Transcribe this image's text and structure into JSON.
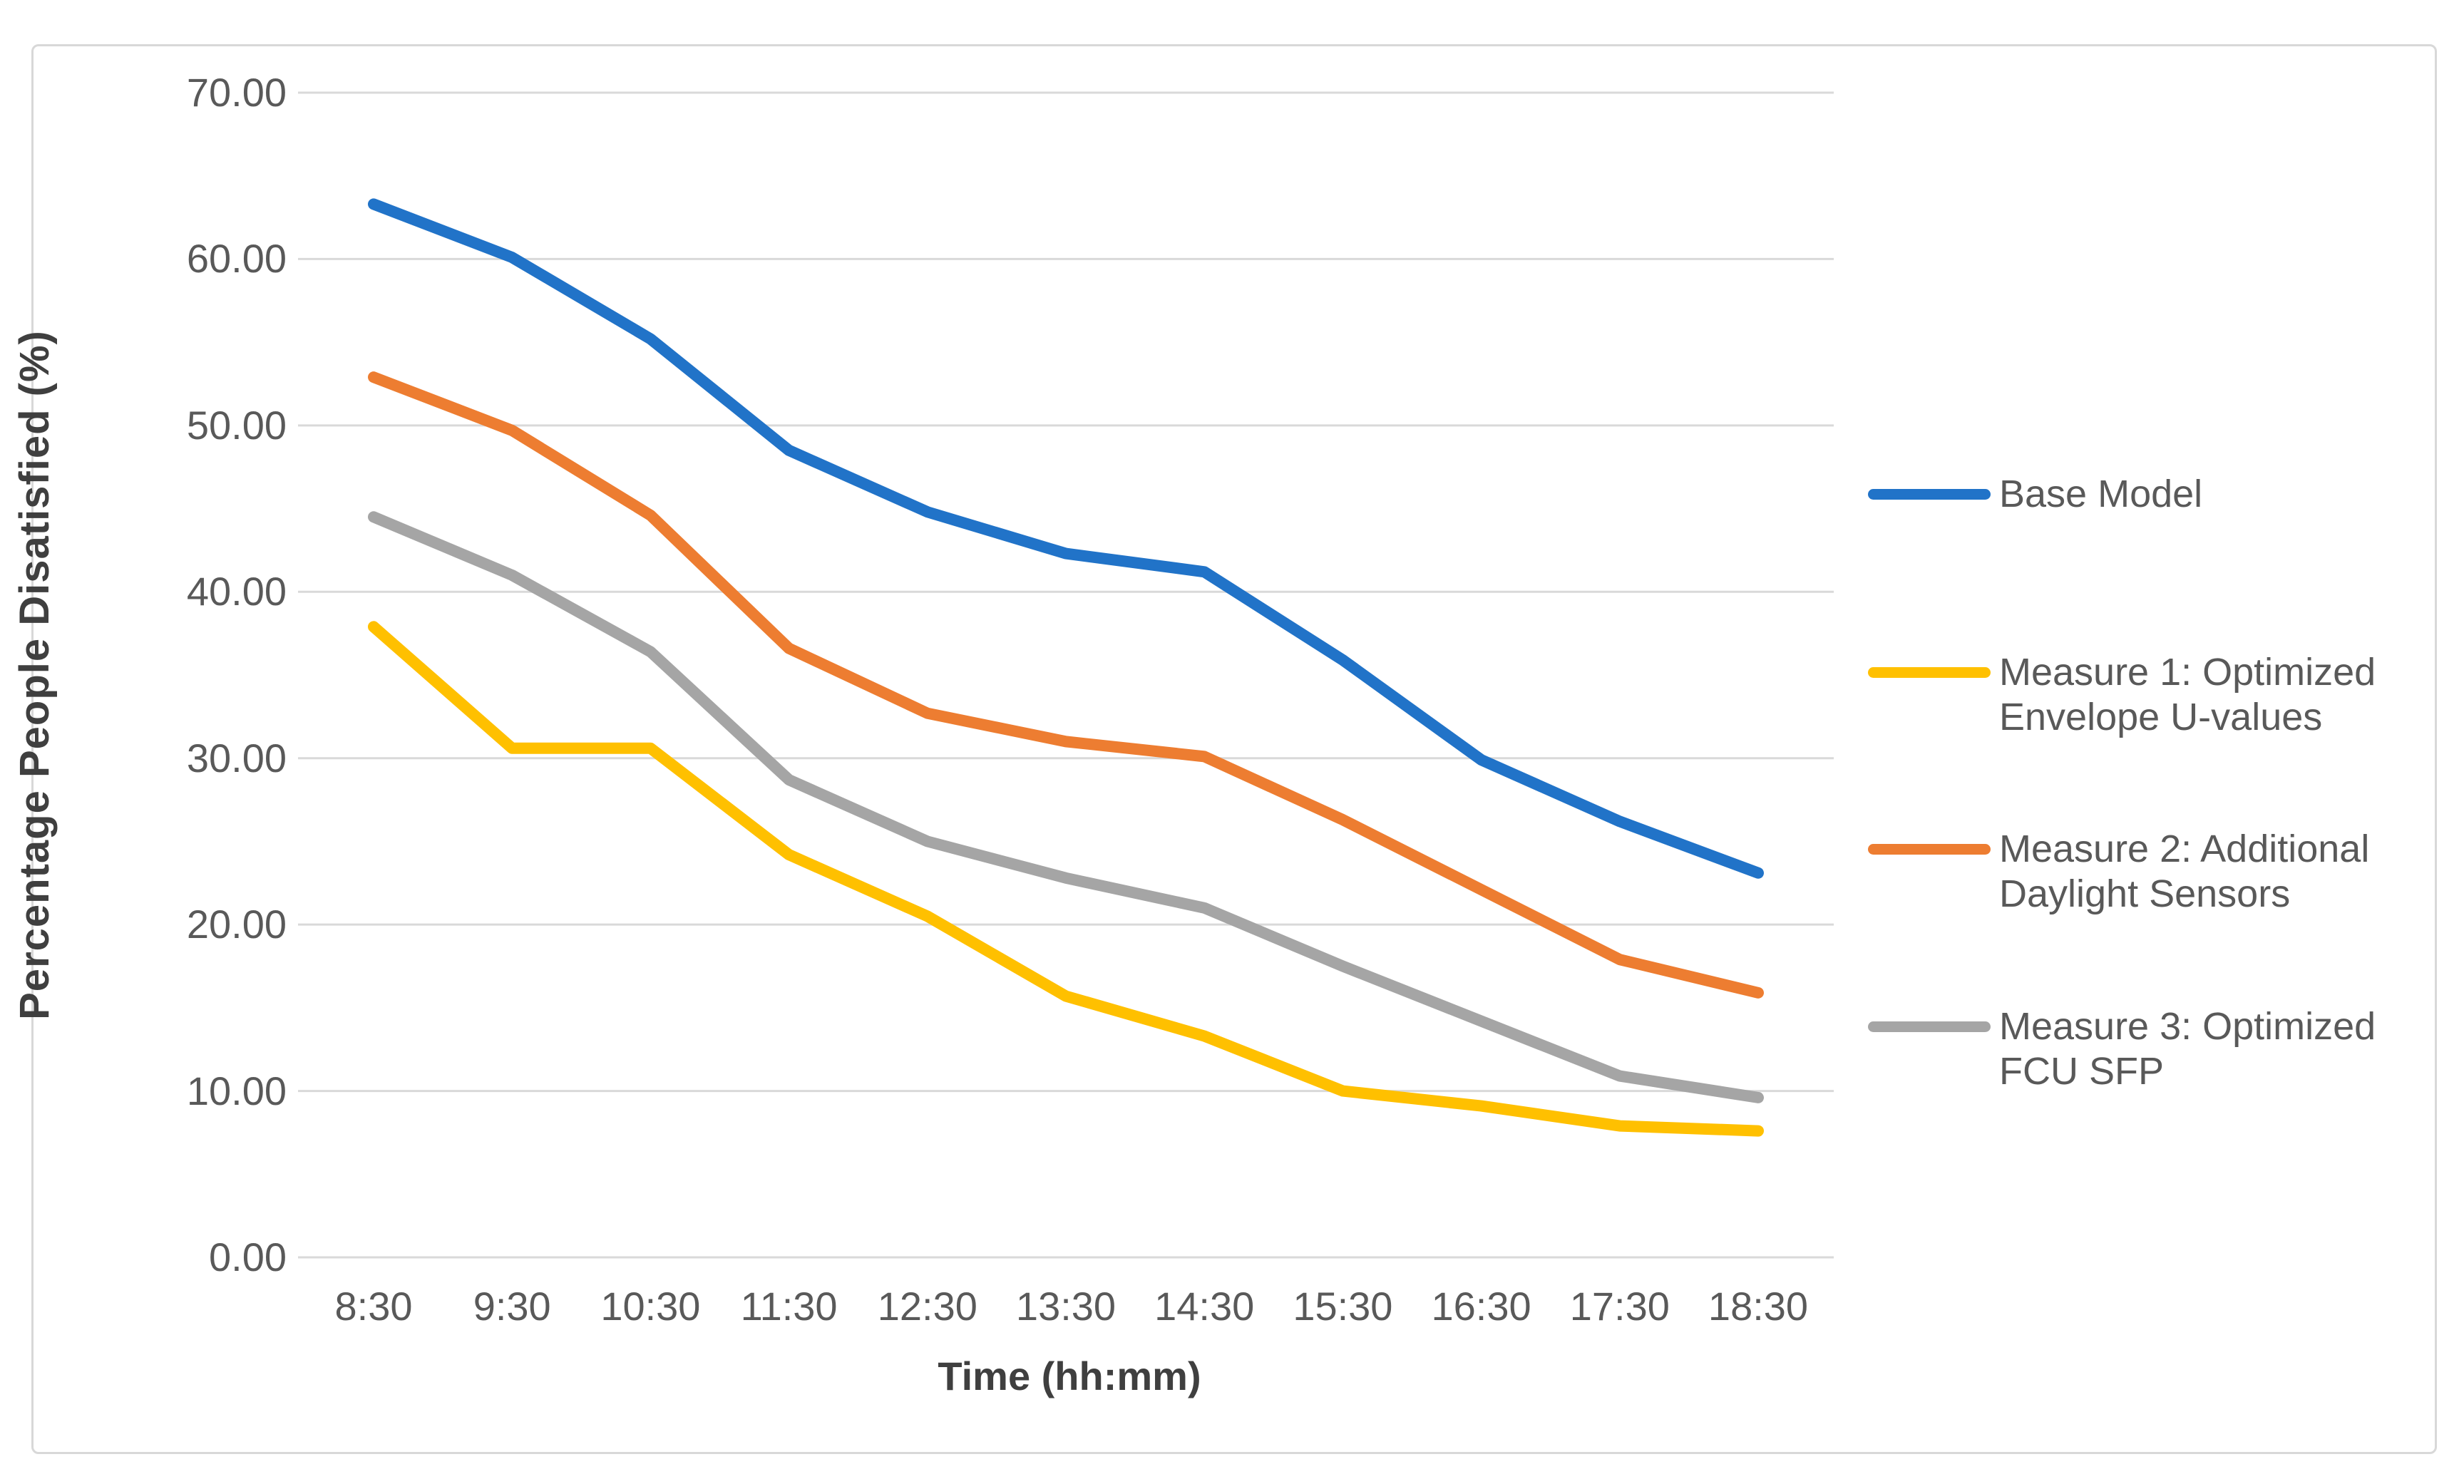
{
  "chart_data": {
    "type": "line",
    "title": "",
    "xlabel": "Time (hh:mm)",
    "ylabel": "Percentage People Disatisfied (%)",
    "categories": [
      "8:30",
      "9:30",
      "10:30",
      "11:30",
      "12:30",
      "13:30",
      "14:30",
      "15:30",
      "16:30",
      "17:30",
      "18:30"
    ],
    "series": [
      {
        "name": "Base Model",
        "color": "#2173c8",
        "values": [
          63.3,
          60.1,
          55.2,
          48.5,
          44.8,
          42.3,
          41.2,
          35.9,
          29.9,
          26.2,
          23.1
        ]
      },
      {
        "name": "Measure 1: Optimized Envelope U-values",
        "color": "#ffc000",
        "values": [
          37.9,
          30.6,
          30.6,
          24.2,
          20.5,
          15.7,
          13.3,
          10.0,
          9.1,
          7.9,
          7.6
        ]
      },
      {
        "name": "Measure 2: Additional Daylight Sensors",
        "color": "#ed7d31",
        "values": [
          52.9,
          49.7,
          44.6,
          36.6,
          32.7,
          31.0,
          30.1,
          26.3,
          22.1,
          17.9,
          15.9
        ]
      },
      {
        "name": "Measure 3: Optimized FCU SFP",
        "color": "#a5a5a5",
        "values": [
          44.5,
          41.0,
          36.4,
          28.7,
          25.0,
          22.8,
          21.0,
          17.5,
          14.2,
          10.9,
          9.6
        ]
      }
    ],
    "ylim": [
      0,
      70
    ],
    "y_tick_labels": [
      "0.00",
      "10.00",
      "20.00",
      "30.00",
      "40.00",
      "50.00",
      "60.00",
      "70.00"
    ],
    "grid": true,
    "legend_position": "right"
  },
  "legend": {
    "entries": [
      {
        "series": 0,
        "lines": "Base Model"
      },
      {
        "series": 1,
        "lines": "Measure 1: Optimized\nEnvelope U-values"
      },
      {
        "series": 2,
        "lines": "Measure 2: Additional\nDaylight Sensors"
      },
      {
        "series": 3,
        "lines": "Measure 3: Optimized\nFCU SFP"
      }
    ]
  },
  "colors": {
    "gridline": "#d9d9d9",
    "tick_text": "#595959",
    "axis_title_text": "#3f3f3f",
    "frame_border": "#d8d8d8"
  }
}
